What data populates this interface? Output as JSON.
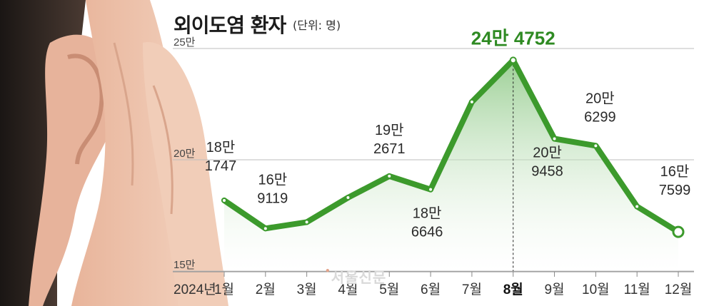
{
  "title": "외이도염 환자",
  "unit": "(단위: 명)",
  "watermark": "서울신문",
  "colors": {
    "line": "#3c9a2c",
    "area_top": "#9fd09a",
    "grid": "#bdbdbd",
    "highlight": "#2e8a22"
  },
  "chart_data": {
    "type": "area",
    "year_label": "2024년",
    "categories": [
      "1월",
      "2월",
      "3월",
      "4월",
      "5월",
      "6월",
      "7월",
      "8월",
      "9월",
      "10월",
      "11월",
      "12월"
    ],
    "values": [
      181747,
      169119,
      172000,
      183000,
      192671,
      186646,
      226000,
      244752,
      209458,
      206299,
      179000,
      167599
    ],
    "point_labels": [
      {
        "index": 0,
        "lines": [
          "18만",
          "1747"
        ]
      },
      {
        "index": 1,
        "lines": [
          "16만",
          "9119"
        ]
      },
      {
        "index": 4,
        "lines": [
          "19만",
          "2671"
        ]
      },
      {
        "index": 5,
        "lines": [
          "18만",
          "6646"
        ]
      },
      {
        "index": 7,
        "lines": [
          "24만 4752"
        ],
        "highlight": true
      },
      {
        "index": 8,
        "lines": [
          "20만",
          "9458"
        ]
      },
      {
        "index": 9,
        "lines": [
          "20만",
          "6299"
        ]
      },
      {
        "index": 11,
        "lines": [
          "16만",
          "7599"
        ]
      }
    ],
    "highlight_index": 7,
    "y_ticks": [
      {
        "value": 150000,
        "label": "15만"
      },
      {
        "value": 200000,
        "label": "20만"
      },
      {
        "value": 250000,
        "label": "25만"
      }
    ],
    "ylim": [
      150000,
      250000
    ],
    "grid": true
  }
}
